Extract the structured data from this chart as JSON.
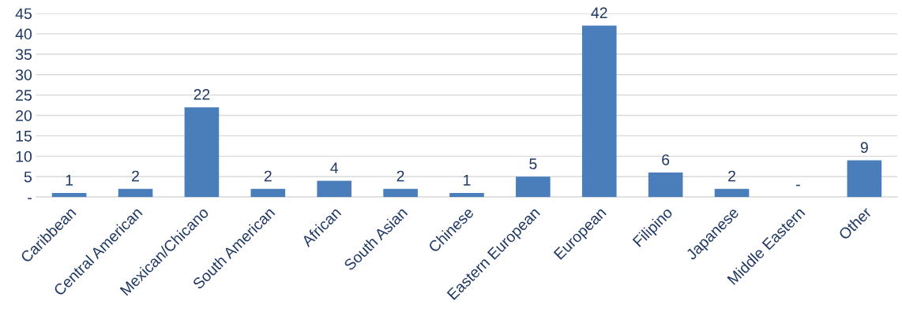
{
  "chart_data": {
    "type": "bar",
    "categories": [
      "Caribbean",
      "Central American",
      "Mexican/Chicano",
      "South American",
      "African",
      "South Asian",
      "Chinese",
      "Eastern European",
      "European",
      "Filipino",
      "Japanese",
      "Middle Eastern",
      "Other"
    ],
    "values": [
      1,
      2,
      22,
      2,
      4,
      2,
      1,
      5,
      42,
      6,
      2,
      0,
      9
    ],
    "value_labels": [
      "1",
      "2",
      "22",
      "2",
      "4",
      "2",
      "1",
      "5",
      "42",
      "6",
      "2",
      "-",
      "9"
    ],
    "color": "#4a7ebb",
    "ylim": [
      0,
      45
    ],
    "yticks": [
      {
        "value": 0,
        "label": "-"
      },
      5,
      10,
      15,
      20,
      25,
      30,
      35,
      40,
      45
    ],
    "grid": "y"
  }
}
